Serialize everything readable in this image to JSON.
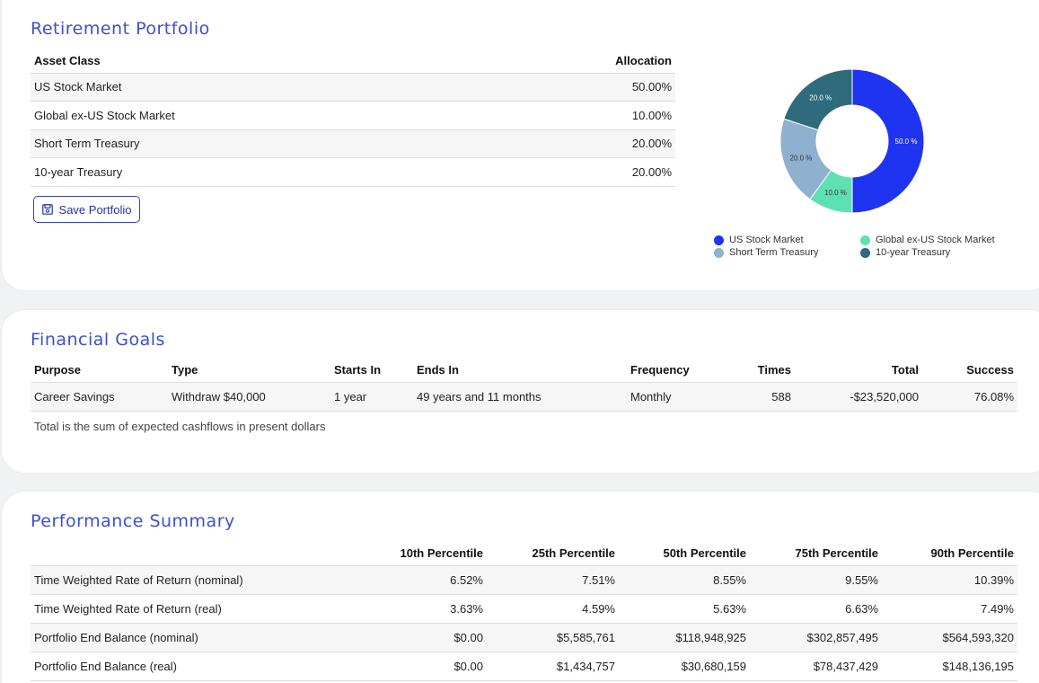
{
  "portfolio": {
    "title": "Retirement Portfolio",
    "headers": {
      "asset_class": "Asset Class",
      "allocation": "Allocation"
    },
    "rows": [
      {
        "asset": "US Stock Market",
        "allocation": "50.00%"
      },
      {
        "asset": "Global ex-US Stock Market",
        "allocation": "10.00%"
      },
      {
        "asset": "Short Term Treasury",
        "allocation": "20.00%"
      },
      {
        "asset": "10-year Treasury",
        "allocation": "20.00%"
      }
    ],
    "save_label": "Save Portfolio",
    "save_icon": "floppy-disk-icon"
  },
  "chart_data": {
    "type": "pie",
    "variant": "donut",
    "categories": [
      "US Stock Market",
      "Global ex-US Stock Market",
      "Short Term Treasury",
      "10-year Treasury"
    ],
    "values": [
      50.0,
      10.0,
      20.0,
      20.0
    ],
    "value_labels": [
      "50.0 %",
      "10.0 %",
      "20.0 %",
      "20.0 %"
    ],
    "colors": [
      "#1f34f0",
      "#5fe0b2",
      "#8fb0cf",
      "#2f6b7c"
    ],
    "legend_position": "bottom"
  },
  "goals": {
    "title": "Financial Goals",
    "headers": [
      "Purpose",
      "Type",
      "Starts In",
      "Ends In",
      "Frequency",
      "Times",
      "Total",
      "Success"
    ],
    "rows": [
      [
        "Career Savings",
        "Withdraw $40,000",
        "1 year",
        "49 years and 11 months",
        "Monthly",
        "588",
        "-$23,520,000",
        "76.08%"
      ]
    ],
    "note": "Total is the sum of expected cashflows in present dollars"
  },
  "performance": {
    "title": "Performance Summary",
    "headers": [
      "",
      "10th Percentile",
      "25th Percentile",
      "50th Percentile",
      "75th Percentile",
      "90th Percentile"
    ],
    "rows": [
      [
        "Time Weighted Rate of Return (nominal)",
        "6.52%",
        "7.51%",
        "8.55%",
        "9.55%",
        "10.39%"
      ],
      [
        "Time Weighted Rate of Return (real)",
        "3.63%",
        "4.59%",
        "5.63%",
        "6.63%",
        "7.49%"
      ],
      [
        "Portfolio End Balance (nominal)",
        "$0.00",
        "$5,585,761",
        "$118,948,925",
        "$302,857,495",
        "$564,593,320"
      ],
      [
        "Portfolio End Balance (real)",
        "$0.00",
        "$1,434,757",
        "$30,680,159",
        "$78,437,429",
        "$148,136,195"
      ]
    ]
  },
  "colors": {
    "accent": "#3b4fd6",
    "button_border": "#3345b8"
  }
}
